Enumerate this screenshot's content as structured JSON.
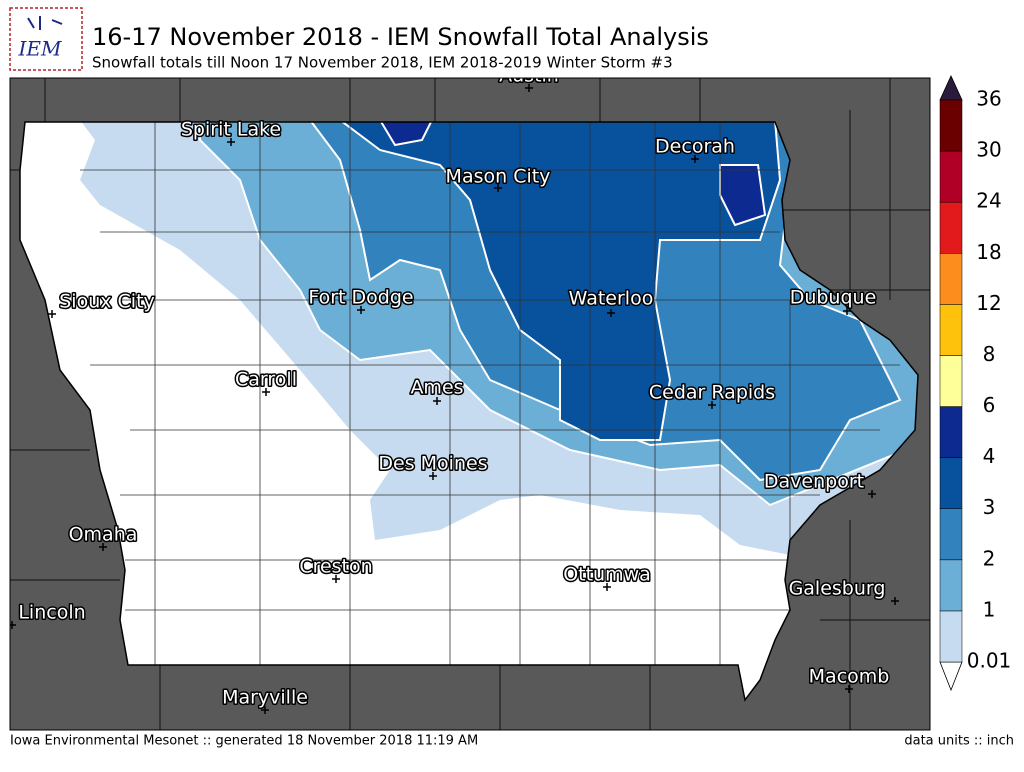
{
  "header": {
    "logo": "IEM",
    "title": "16-17 November 2018 - IEM Snowfall Total Analysis",
    "subtitle": "Snowfall totals till Noon 17 November 2018, IEM 2018-2019 Winter Storm #3"
  },
  "map": {
    "cities": [
      "Austin",
      "Spirit Lake",
      "Decorah",
      "Mason City",
      "Sioux City",
      "Fort Dodge",
      "Waterloo",
      "Dubuque",
      "Carroll",
      "Ames",
      "Cedar Rapids",
      "Des Moines",
      "Davenport",
      "Omaha",
      "Creston",
      "Ottumwa",
      "Galesburg",
      "Lincoln",
      "Macomb",
      "Maryville"
    ]
  },
  "legend": {
    "levels": [
      "0.01",
      "1",
      "2",
      "3",
      "4",
      "6",
      "8",
      "12",
      "18",
      "24",
      "30",
      "36"
    ],
    "colors": [
      "#c6dbef",
      "#6baed6",
      "#3182bd",
      "#08519c",
      "#0c2a8f",
      "#ffff99",
      "#fec20d",
      "#fd8d1c",
      "#e31a1c",
      "#b10026",
      "#6b0000"
    ]
  },
  "footer": {
    "credit": "Iowa Environmental Mesonet :: generated 18 November 2018 11:19 AM",
    "units": "data units :: inch"
  }
}
